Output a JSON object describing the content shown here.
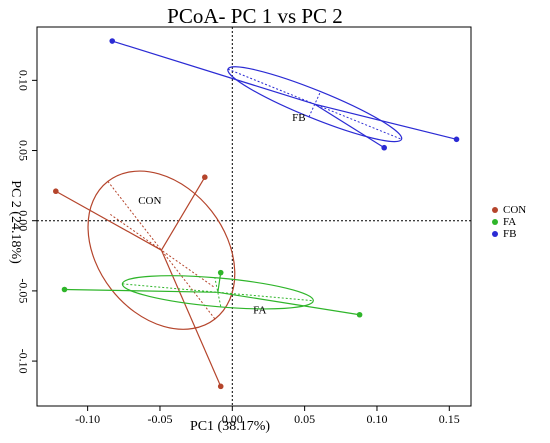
{
  "chart_data": {
    "type": "scatter",
    "title": "PCoA- PC 1 vs PC 2",
    "xlabel": "PC1 (38.17%)",
    "ylabel": "PC 2 (24.18%)",
    "xlim": [
      -0.135,
      0.165
    ],
    "ylim": [
      -0.132,
      0.138
    ],
    "x_ticks": [
      -0.1,
      -0.05,
      0.0,
      0.05,
      0.1,
      0.15
    ],
    "x_tick_labels": [
      "-0.10",
      "-0.05",
      "0.00",
      "0.05",
      "0.10",
      "0.15"
    ],
    "y_ticks": [
      -0.1,
      -0.05,
      0.0,
      0.05,
      0.1
    ],
    "y_tick_labels": [
      "-0.10",
      "-0.05",
      "0.00",
      "0.05",
      "0.10"
    ],
    "reference_lines": {
      "x": 0,
      "y": 0,
      "style": "dotted"
    },
    "legend_position": "right",
    "series": [
      {
        "name": "CON",
        "color": "#b5452c",
        "centroid": [
          -0.049,
          -0.021
        ],
        "points": [
          [
            -0.122,
            0.021
          ],
          [
            -0.019,
            0.031
          ],
          [
            -0.008,
            -0.118
          ]
        ],
        "ellipse": {
          "center": [
            -0.049,
            -0.021
          ],
          "axis_end_major": [
            -0.012,
            -0.07
          ],
          "axis_end_minor": [
            -0.085,
            0.005
          ]
        },
        "label_pos": [
          -0.057,
          0.012
        ]
      },
      {
        "name": "FA",
        "color": "#2fb52a",
        "centroid": [
          -0.01,
          -0.051
        ],
        "points": [
          [
            -0.116,
            -0.049
          ],
          [
            -0.008,
            -0.037
          ],
          [
            0.088,
            -0.067
          ]
        ],
        "ellipse": {
          "center": [
            -0.01,
            -0.051
          ],
          "axis_end_major": [
            0.056,
            -0.057
          ],
          "axis_end_minor": [
            -0.012,
            -0.041
          ]
        },
        "label_pos": [
          0.019,
          -0.066
        ]
      },
      {
        "name": "FB",
        "color": "#2b2bd4",
        "centroid": [
          0.057,
          0.083
        ],
        "points": [
          [
            -0.083,
            0.128
          ],
          [
            0.105,
            0.052
          ],
          [
            0.155,
            0.058
          ]
        ],
        "ellipse": {
          "center": [
            0.057,
            0.083
          ],
          "axis_end_major": [
            0.117,
            0.058
          ],
          "axis_end_minor": [
            0.061,
            0.092
          ]
        },
        "label_pos": [
          0.046,
          0.071
        ]
      }
    ]
  }
}
